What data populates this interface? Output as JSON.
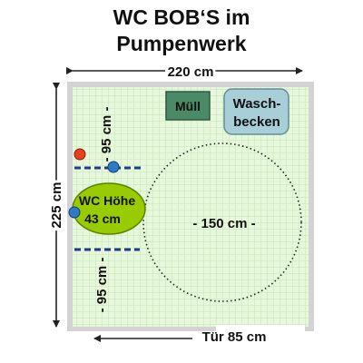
{
  "title_line1": "WC BOB‘S im",
  "title_line2": "Pumpenwerk",
  "width_label": "220 cm",
  "height_label": "225 cm",
  "door_label": "Tür 85 cm",
  "bin_label": "Müll",
  "sink_label_line1": "Wasch-",
  "sink_label_line2": "becken",
  "wc_label_line1": "WC Höhe",
  "wc_label_line2": "43 cm",
  "turning_circle_label": "- 150 cm -",
  "grab_bar_top_label": "- 95 cm -",
  "grab_bar_bottom_label": "- 95 cm -",
  "colors": {
    "floor": "#e6f7dc",
    "grid": "#c6e6b4",
    "wall": "#d3d3d3",
    "wc": "#99cc00",
    "bin": "#4a8a66",
    "sink": "#a8cfd8",
    "grab_bar": "#1f3c8c",
    "button_blue": "#2e7bc4",
    "button_red": "#e8401c"
  }
}
